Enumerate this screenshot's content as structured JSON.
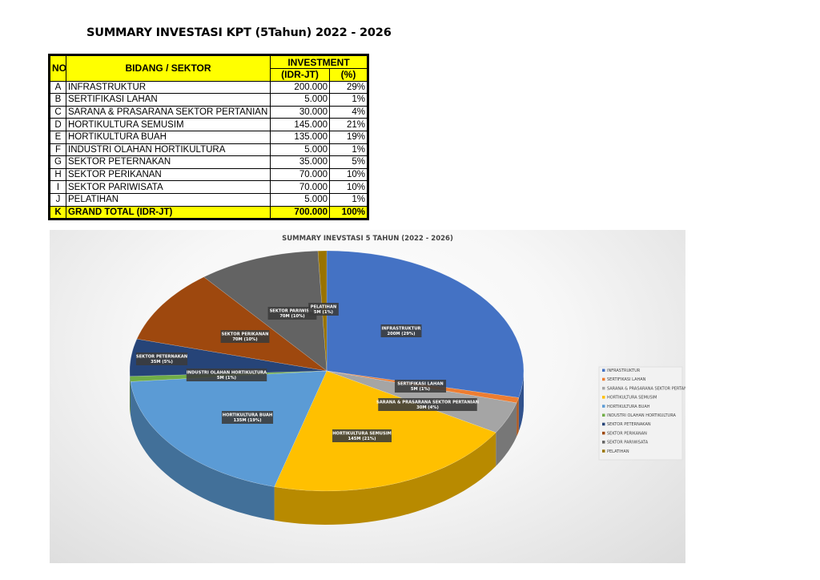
{
  "page_title": "SUMMARY INVESTASI KPT (5Tahun) 2022 - 2026",
  "table": {
    "headers": {
      "no": "NO",
      "sector": "BIDANG / SEKTOR",
      "investment": "INVESTMENT",
      "idr": "(IDR-JT)",
      "pct": "(%)"
    },
    "rows": [
      {
        "no": "A",
        "sector": "INFRASTRUKTUR",
        "idr": "200.000",
        "pct": "29%"
      },
      {
        "no": "B",
        "sector": "SERTIFIKASI LAHAN",
        "idr": "5.000",
        "pct": "1%"
      },
      {
        "no": "C",
        "sector": "SARANA & PRASARANA SEKTOR PERTANIAN",
        "idr": "30.000",
        "pct": "4%"
      },
      {
        "no": "D",
        "sector": "HORTIKULTURA SEMUSIM",
        "idr": "145.000",
        "pct": "21%"
      },
      {
        "no": "E",
        "sector": "HORTIKULTURA BUAH",
        "idr": "135.000",
        "pct": "19%"
      },
      {
        "no": "F",
        "sector": "INDUSTRI OLAHAN HORTIKULTURA",
        "idr": "5.000",
        "pct": "1%"
      },
      {
        "no": "G",
        "sector": "SEKTOR PETERNAKAN",
        "idr": "35.000",
        "pct": "5%"
      },
      {
        "no": "H",
        "sector": "SEKTOR PERIKANAN",
        "idr": "70.000",
        "pct": "10%"
      },
      {
        "no": "I",
        "sector": "SEKTOR PARIWISATA",
        "idr": "70.000",
        "pct": "10%"
      },
      {
        "no": "J",
        "sector": "PELATIHAN",
        "idr": "5.000",
        "pct": "1%"
      }
    ],
    "total": {
      "no": "K",
      "sector": "GRAND TOTAL (IDR-JT)",
      "idr": "700.000",
      "pct": "100%"
    }
  },
  "chart_data": {
    "type": "pie",
    "title": "SUMMARY INEVSTASI 5 TAHUN (2022 - 2026)",
    "legend_position": "right",
    "slices": [
      {
        "name": "INFRASTRUKTUR",
        "value": 200,
        "label": "INFRASTRUKTUR",
        "sublabel": "200M (29%)",
        "color": "#4472c4"
      },
      {
        "name": "SERTIFIKASI LAHAN",
        "value": 5,
        "label": "SERTIFIKASI LAHAN",
        "sublabel": "5M (1%)",
        "color": "#ed7d31"
      },
      {
        "name": "SARANA & PRASARANA SEKTOR PERTANIAN",
        "value": 30,
        "label": "SARANA & PRASARANA SEKTOR PERTANIAN",
        "sublabel": "30M (4%)",
        "color": "#a5a5a5"
      },
      {
        "name": "HORTIKULTURA SEMUSIM",
        "value": 145,
        "label": "HORTIKULTURA SEMUSIM",
        "sublabel": "145M (21%)",
        "color": "#ffc000"
      },
      {
        "name": "HORTIKULTURA BUAH",
        "value": 135,
        "label": "HORTIKULTURA BUAH",
        "sublabel": "135M (19%)",
        "color": "#5b9bd5"
      },
      {
        "name": "INDUSTRI OLAHAN HORTIKULTURA",
        "value": 5,
        "label": "INDUSTRI OLAHAN HORTIKULTURA",
        "sublabel": "5M (1%)",
        "color": "#70ad47"
      },
      {
        "name": "SEKTOR PETERNAKAN",
        "value": 35,
        "label": "SEKTOR PETERNAKAN",
        "sublabel": "35M (5%)",
        "color": "#264478"
      },
      {
        "name": "SEKTOR PERIKANAN",
        "value": 70,
        "label": "SEKTOR PERIKANAN",
        "sublabel": "70M (10%)",
        "color": "#9e480e"
      },
      {
        "name": "SEKTOR PARIWISATA",
        "value": 70,
        "label": "SEKTOR PARIWISAT",
        "sublabel": "70M (10%)",
        "color": "#636363"
      },
      {
        "name": "PELATIHAN",
        "value": 5,
        "label": "PELATIHAN",
        "sublabel": "5M (1%)",
        "color": "#997300"
      }
    ]
  }
}
